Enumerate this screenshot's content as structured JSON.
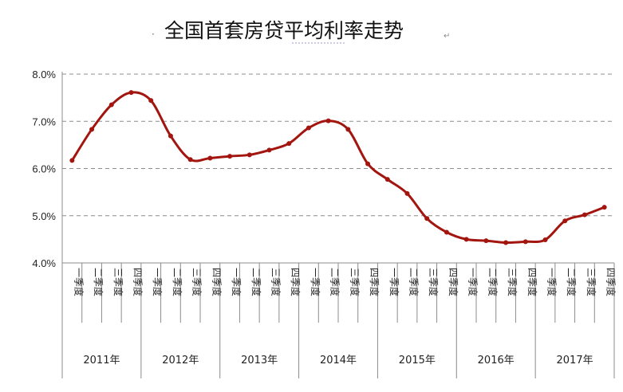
{
  "chart_data": {
    "type": "line",
    "title": "全国首套房贷平均利率走势",
    "ylim": [
      4.0,
      8.0
    ],
    "yticks": [
      "8.0%",
      "7.0%",
      "6.0%",
      "5.0%",
      "4.0%"
    ],
    "grid": true,
    "quarter_labels": [
      "一季度",
      "二季度",
      "三季度",
      "四季度"
    ],
    "years": [
      "2011年",
      "2012年",
      "2013年",
      "2014年",
      "2015年",
      "2016年",
      "2017年"
    ],
    "series": [
      {
        "color": "#a3150f",
        "values": [
          6.17,
          6.83,
          7.35,
          7.61,
          7.44,
          6.69,
          6.19,
          6.22,
          6.26,
          6.29,
          6.39,
          6.53,
          6.86,
          7.01,
          6.83,
          6.1,
          5.77,
          5.47,
          4.94,
          4.65,
          4.5,
          4.47,
          4.43,
          4.45,
          4.49,
          4.89,
          5.02,
          5.18
        ]
      }
    ]
  }
}
